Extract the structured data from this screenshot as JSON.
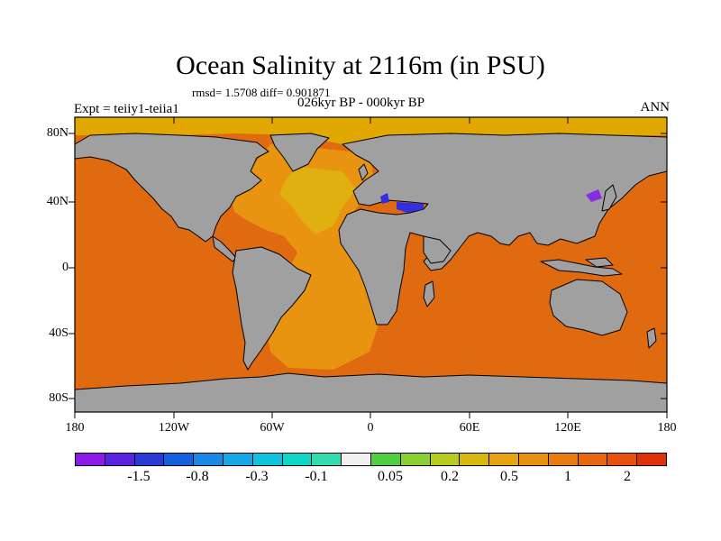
{
  "figure": {
    "title": "Ocean Salinity at 2116m (in PSU)",
    "stats": "rmsd= 1.5708 diff= 0.901871",
    "left_label": "Expt = teiiy1-teiia1",
    "center_label": "026kyr BP - 000kyr BP",
    "right_label": "ANN"
  },
  "map": {
    "projection": "cylindrical equidistant",
    "land_color": "#a0a0a0",
    "coastline_color": "#000000",
    "lat_ticks": [
      "80N",
      "40N",
      "0",
      "40S",
      "80S"
    ],
    "lon_ticks": [
      "180",
      "120W",
      "60W",
      "0",
      "60E",
      "120E",
      "180"
    ],
    "dominant_field_colors": {
      "pacific_indian_southern": "#e06a10",
      "atlantic": "#e89410",
      "atlantic_core": "#e0b010",
      "arctic": "#e0a800",
      "mediterranean": "#3030e0",
      "sea_of_japan": "#8a2be2"
    }
  },
  "colorbar": {
    "colors": [
      "#8a1be8",
      "#5a22e0",
      "#2a3ad8",
      "#1660e0",
      "#1a88e6",
      "#18a8e8",
      "#10c4e0",
      "#10d8c8",
      "#30dcb0",
      "#f0f0f0",
      "#50d040",
      "#8ad030",
      "#b8cc20",
      "#d8b810",
      "#e8a410",
      "#e89010",
      "#e87c10",
      "#e86810",
      "#e85010",
      "#e03008"
    ],
    "labels": [
      "-1.5",
      "-0.8",
      "-0.3",
      "-0.1",
      "0.05",
      "0.2",
      "0.5",
      "1",
      "2"
    ]
  }
}
